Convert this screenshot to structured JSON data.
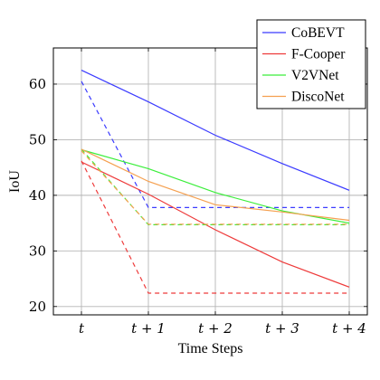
{
  "chart_data": {
    "type": "line",
    "title": "",
    "xlabel": "Time Steps",
    "ylabel": "IoU",
    "categories": [
      "t",
      "t + 1",
      "t + 2",
      "t + 3",
      "t + 4"
    ],
    "ylim": [
      18.5,
      66.5
    ],
    "yticks": [
      20,
      30,
      40,
      50,
      60
    ],
    "grid": true,
    "legend_position": "top-right",
    "series": [
      {
        "name": "CoBEVT",
        "color": "#3b3bff",
        "solid": [
          62.5,
          56.8,
          50.8,
          45.7,
          40.9
        ],
        "dashed": [
          60.5,
          37.8,
          37.8,
          37.8,
          37.8
        ]
      },
      {
        "name": "F-Cooper",
        "color": "#ee3b3b",
        "solid": [
          46.0,
          40.2,
          33.8,
          28.0,
          23.5
        ],
        "dashed": [
          46.2,
          22.4,
          22.4,
          22.4,
          22.4
        ]
      },
      {
        "name": "V2VNet",
        "color": "#3bee3b",
        "solid": [
          48.2,
          44.8,
          40.5,
          37.2,
          35.0
        ],
        "dashed": [
          48.3,
          34.7,
          34.7,
          34.7,
          34.7
        ]
      },
      {
        "name": "DiscoNet",
        "color": "#f5a050",
        "solid": [
          48.3,
          42.5,
          38.3,
          37.0,
          35.5
        ],
        "dashed": [
          48.0,
          34.8,
          34.8,
          34.8,
          34.8
        ]
      }
    ]
  }
}
